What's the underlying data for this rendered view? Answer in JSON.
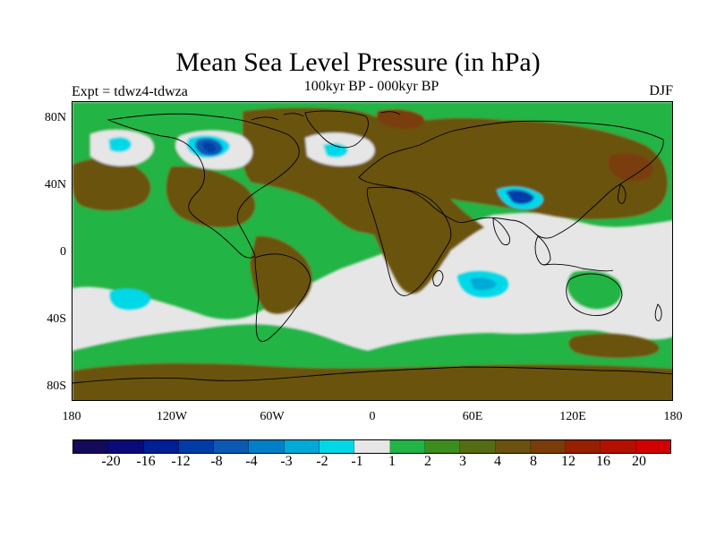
{
  "title": "Mean Sea Level Pressure (in hPa)",
  "subtitle": "100kyr BP - 000kyr BP",
  "experiment": "Expt = tdwz4-tdwza",
  "season": "DJF",
  "map": {
    "projection": "cylindrical-equidistant",
    "lon_range": [
      -180,
      180
    ],
    "lat_range": [
      -90,
      90
    ],
    "y_tick_labels": [
      "80N",
      "40N",
      "0",
      "40S",
      "80S"
    ],
    "x_tick_labels": [
      "180",
      "120W",
      "60W",
      "0",
      "60E",
      "120E",
      "180"
    ],
    "background_color": "#e6e6e6"
  },
  "colorbar": {
    "colors": [
      "#140a5a",
      "#0a0a78",
      "#001e96",
      "#003ca8",
      "#0a5ab4",
      "#0080c8",
      "#00aad8",
      "#00d8e8",
      "#e6e6e6",
      "#22b444",
      "#3c8c1e",
      "#556b14",
      "#6b5210",
      "#7a3c0a",
      "#962000",
      "#b41000",
      "#d20000"
    ],
    "labels": [
      "-20",
      "-16",
      "-12",
      "-8",
      "-4",
      "-3",
      "-2",
      "-1",
      "1",
      "2",
      "3",
      "4",
      "8",
      "12",
      "16",
      "20"
    ]
  }
}
